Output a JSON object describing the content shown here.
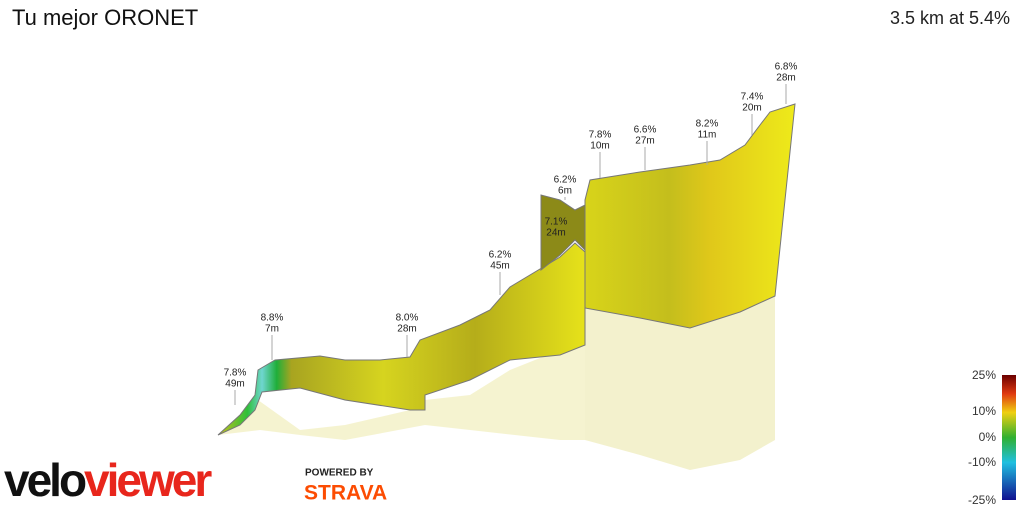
{
  "header": {
    "title": "Tu mejor ORONET",
    "summary": "3.5 km at 5.4%"
  },
  "annotations": [
    {
      "grade": "7.8%",
      "length": "49m"
    },
    {
      "grade": "8.8%",
      "length": "7m"
    },
    {
      "grade": "8.0%",
      "length": "28m"
    },
    {
      "grade": "6.2%",
      "length": "45m"
    },
    {
      "grade": "7.1%",
      "length": "24m"
    },
    {
      "grade": "6.2%",
      "length": "6m"
    },
    {
      "grade": "7.8%",
      "length": "10m"
    },
    {
      "grade": "6.6%",
      "length": "27m"
    },
    {
      "grade": "8.2%",
      "length": "11m"
    },
    {
      "grade": "7.4%",
      "length": "20m"
    },
    {
      "grade": "6.8%",
      "length": "28m"
    }
  ],
  "color_scale": {
    "labels": [
      "25%",
      "10%",
      "0%",
      "-10%",
      "-25%"
    ]
  },
  "branding": {
    "logo_first": "velo",
    "logo_second": "viewer",
    "powered_by": "POWERED BY",
    "partner": "STRAVA"
  }
}
